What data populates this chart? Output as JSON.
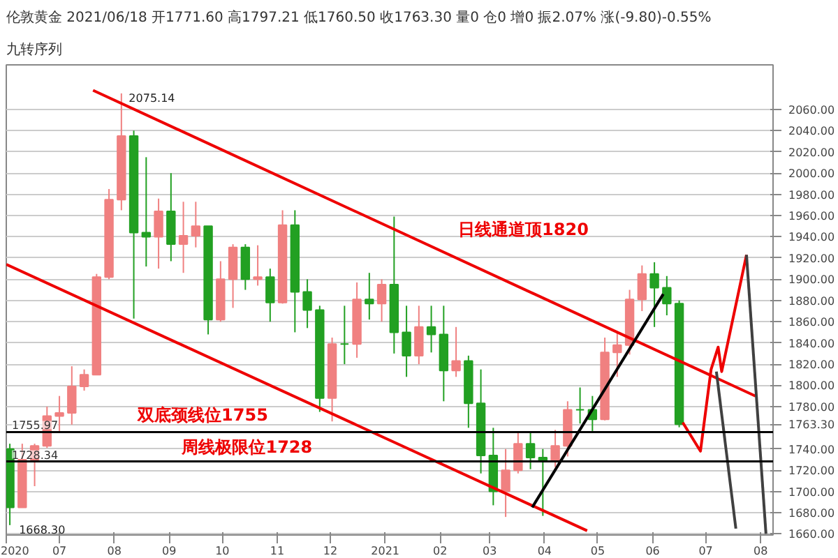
{
  "chart_data": {
    "type": "candlestick",
    "title": "伦敦黄金 2021/06/18 开1771.60 高1797.21 低1760.50 收1763.30 量0 仓0 增0 振2.07% 涨(-9.80)-0.55%",
    "subtitle": "九转序列",
    "x": [
      "2020-06-03",
      "2020-06-10",
      "2020-06-17",
      "2020-06-24",
      "2020-07-01",
      "2020-07-08",
      "2020-07-15",
      "2020-07-22",
      "2020-07-29",
      "2020-08-05",
      "2020-08-12",
      "2020-08-19",
      "2020-08-26",
      "2020-09-02",
      "2020-09-09",
      "2020-09-16",
      "2020-09-23",
      "2020-09-30",
      "2020-10-07",
      "2020-10-14",
      "2020-10-21",
      "2020-10-28",
      "2020-11-04",
      "2020-11-11",
      "2020-11-18",
      "2020-11-25",
      "2020-12-02",
      "2020-12-09",
      "2020-12-16",
      "2020-12-23",
      "2020-12-30",
      "2021-01-06",
      "2021-01-13",
      "2021-01-20",
      "2021-01-27",
      "2021-02-03",
      "2021-02-10",
      "2021-02-17",
      "2021-02-24",
      "2021-03-03",
      "2021-03-10",
      "2021-03-17",
      "2021-03-24",
      "2021-03-31",
      "2021-04-07",
      "2021-04-14",
      "2021-04-21",
      "2021-04-28",
      "2021-05-05",
      "2021-05-12",
      "2021-05-19",
      "2021-05-26",
      "2021-06-02",
      "2021-06-09",
      "2021-06-16"
    ],
    "ohlc": [
      [
        1740,
        1745,
        1668.3,
        1685
      ],
      [
        1685,
        1745,
        1685,
        1730
      ],
      [
        1730,
        1745,
        1705,
        1743
      ],
      [
        1743,
        1780,
        1741,
        1771
      ],
      [
        1771,
        1790,
        1757,
        1774
      ],
      [
        1774,
        1818,
        1763,
        1799
      ],
      [
        1799,
        1815,
        1795,
        1810
      ],
      [
        1810,
        1905,
        1810,
        1902
      ],
      [
        1902,
        1985,
        1900,
        1975
      ],
      [
        1975,
        2075.14,
        1965,
        2035
      ],
      [
        2035,
        2040,
        1863,
        1944
      ],
      [
        1944,
        2015,
        1912,
        1940
      ],
      [
        1940,
        1976,
        1910,
        1964
      ],
      [
        1964,
        2000,
        1917,
        1933
      ],
      [
        1933,
        1973,
        1906,
        1941
      ],
      [
        1941,
        1973,
        1930,
        1950
      ],
      [
        1950,
        1950,
        1848,
        1862
      ],
      [
        1862,
        1917,
        1860,
        1900
      ],
      [
        1900,
        1933,
        1873,
        1930
      ],
      [
        1930,
        1933,
        1890,
        1900
      ],
      [
        1900,
        1932,
        1894,
        1902
      ],
      [
        1902,
        1910,
        1860,
        1878
      ],
      [
        1878,
        1965,
        1877,
        1951
      ],
      [
        1951,
        1965,
        1850,
        1888
      ],
      [
        1888,
        1900,
        1854,
        1871
      ],
      [
        1871,
        1875,
        1775,
        1788
      ],
      [
        1788,
        1845,
        1766,
        1839
      ],
      [
        1839,
        1875,
        1820,
        1839
      ],
      [
        1839,
        1897,
        1826,
        1881
      ],
      [
        1881,
        1906,
        1862,
        1877
      ],
      [
        1877,
        1900,
        1860,
        1895
      ],
      [
        1895,
        1959,
        1830,
        1850
      ],
      [
        1850,
        1875,
        1808,
        1828
      ],
      [
        1828,
        1875,
        1820,
        1855
      ],
      [
        1855,
        1875,
        1831,
        1848
      ],
      [
        1848,
        1875,
        1785,
        1814
      ],
      [
        1814,
        1855,
        1808,
        1823
      ],
      [
        1823,
        1828,
        1760,
        1783
      ],
      [
        1783,
        1815,
        1717,
        1734
      ],
      [
        1734,
        1760,
        1687,
        1700
      ],
      [
        1700,
        1740,
        1676,
        1720
      ],
      [
        1720,
        1755,
        1717,
        1745
      ],
      [
        1745,
        1755,
        1721,
        1732
      ],
      [
        1732,
        1740,
        1677,
        1729
      ],
      [
        1729,
        1758,
        1723,
        1743
      ],
      [
        1743,
        1785,
        1733,
        1777
      ],
      [
        1777,
        1798,
        1764,
        1777
      ],
      [
        1777,
        1790,
        1757,
        1768
      ],
      [
        1768,
        1845,
        1767,
        1831
      ],
      [
        1831,
        1850,
        1808,
        1838
      ],
      [
        1838,
        1890,
        1829,
        1881
      ],
      [
        1881,
        1913,
        1870,
        1905
      ],
      [
        1905,
        1916,
        1855,
        1892
      ],
      [
        1892,
        1903,
        1866,
        1877
      ],
      [
        1877,
        1880,
        1760.5,
        1763.3
      ]
    ],
    "colors": [
      "#22a022",
      "#f08080",
      "#f08080",
      "#f08080",
      "#f08080",
      "#f08080",
      "#f08080",
      "#f08080",
      "#f08080",
      "#f08080",
      "#22a022",
      "#22a022",
      "#f08080",
      "#22a022",
      "#f08080",
      "#f08080",
      "#22a022",
      "#f08080",
      "#f08080",
      "#22a022",
      "#f08080",
      "#22a022",
      "#f08080",
      "#22a022",
      "#22a022",
      "#22a022",
      "#f08080",
      "#22a022",
      "#f08080",
      "#22a022",
      "#f08080",
      "#22a022",
      "#22a022",
      "#f08080",
      "#22a022",
      "#22a022",
      "#f08080",
      "#22a022",
      "#22a022",
      "#22a022",
      "#f08080",
      "#f08080",
      "#22a022",
      "#22a022",
      "#f08080",
      "#f08080",
      "#22a022",
      "#22a022",
      "#f08080",
      "#f08080",
      "#f08080",
      "#f08080",
      "#22a022",
      "#22a022",
      "#22a022"
    ],
    "series": [
      {
        "type": "line",
        "color": "#ee0000",
        "x": [
          "2020-07-20",
          "2021-07-29"
        ],
        "values": [
          2078,
          1790
        ]
      },
      {
        "type": "line",
        "color": "#ee0000",
        "x": [
          "2020-06-01",
          "2021-04-25"
        ],
        "values": [
          1914,
          1663
        ]
      },
      {
        "type": "line",
        "color": "#000000",
        "x": [
          "2021-03-25",
          "2021-06-07"
        ],
        "values": [
          1685,
          1886
        ]
      },
      {
        "type": "line",
        "color": "#ee0000",
        "x": [
          "2021-06-18",
          "2021-06-28",
          "2021-07-04",
          "2021-07-08",
          "2021-07-10",
          "2021-07-24"
        ],
        "values": [
          1765,
          1738,
          1815,
          1836,
          1813,
          1923
        ]
      },
      {
        "type": "line",
        "color": "#404040",
        "x": [
          "2021-07-07",
          "2021-07-18"
        ],
        "values": [
          1813,
          1665
        ]
      },
      {
        "type": "line",
        "color": "#404040",
        "x": [
          "2021-07-24",
          "2021-08-04"
        ],
        "values": [
          1923,
          1660
        ]
      }
    ],
    "ref_lines": [
      {
        "axis": "y",
        "value": 1755.97,
        "label": "1755.97",
        "color": "#000000"
      },
      {
        "axis": "y",
        "value": 1728.34,
        "label": "1728.34",
        "color": "#000000"
      }
    ],
    "annotations": [
      {
        "text": "2075.14",
        "x": "2020-08-06",
        "y": 2075.14
      },
      {
        "text": "1668.30",
        "x": "2020-06-05",
        "y": 1668.3
      },
      "双底颈线位1755",
      "日线通道顶1820",
      "周线极限位1728"
    ],
    "xlim": [
      "2020-06-01",
      "2021-08-08"
    ],
    "xticks": [
      {
        "value": "2020-06-01",
        "label": "2020"
      },
      {
        "value": "2020-07-01",
        "label": "07"
      },
      {
        "value": "2020-08-01",
        "label": "08"
      },
      {
        "value": "2020-09-01",
        "label": "09"
      },
      {
        "value": "2020-10-01",
        "label": "10"
      },
      {
        "value": "2020-11-01",
        "label": "11"
      },
      {
        "value": "2020-12-01",
        "label": "12"
      },
      {
        "value": "2021-01-01",
        "label": "2021"
      },
      {
        "value": "2021-02-01",
        "label": "02"
      },
      {
        "value": "2021-03-01",
        "label": "03"
      },
      {
        "value": "2021-04-01",
        "label": "04"
      },
      {
        "value": "2021-05-01",
        "label": "05"
      },
      {
        "value": "2021-06-01",
        "label": "06"
      },
      {
        "value": "2021-07-01",
        "label": "07"
      },
      {
        "value": "2021-08-01",
        "label": "08"
      }
    ],
    "ylim": [
      1659,
      2102
    ],
    "yticks": [
      {
        "value": 1660,
        "label": "1660.00"
      },
      {
        "value": 1680,
        "label": "1680.00"
      },
      {
        "value": 1700,
        "label": "1700.00"
      },
      {
        "value": 1720,
        "label": "1720.00"
      },
      {
        "value": 1740,
        "label": "1740.00"
      },
      {
        "value": 1763.3,
        "label": "1763.30"
      },
      {
        "value": 1780,
        "label": "1780.00"
      },
      {
        "value": 1800,
        "label": "1800.00"
      },
      {
        "value": 1820,
        "label": "1820.00"
      },
      {
        "value": 1840,
        "label": "1840.00"
      },
      {
        "value": 1860,
        "label": "1860.00"
      },
      {
        "value": 1880,
        "label": "1880.00"
      },
      {
        "value": 1900,
        "label": "1900.00"
      },
      {
        "value": 1920,
        "label": "1920.00"
      },
      {
        "value": 1940,
        "label": "1940.00"
      },
      {
        "value": 1960,
        "label": "1960.00"
      },
      {
        "value": 1980,
        "label": "1980.00"
      },
      {
        "value": 2000,
        "label": "2000.00"
      },
      {
        "value": 2020,
        "label": "2020.00"
      },
      {
        "value": 2040,
        "label": "2040.00"
      },
      {
        "value": 2060,
        "label": "2060.00"
      }
    ],
    "grid": "y"
  }
}
